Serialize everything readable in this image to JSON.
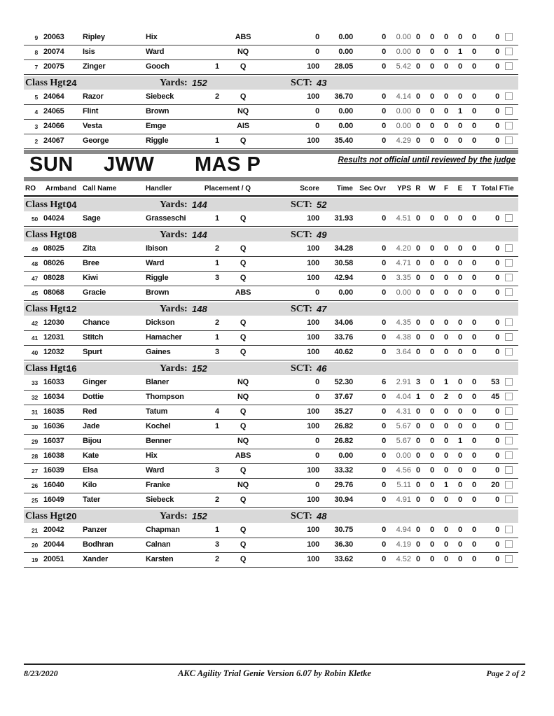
{
  "header": {
    "day": "SUN",
    "event": "JWW",
    "division": "MAS P",
    "notice": "Results not official until reviewed by the judge"
  },
  "columns": {
    "ro": "RO",
    "armband": "Armband",
    "call_name": "Call Name",
    "handler": "Handler",
    "placement_q": "Placement / Q",
    "score": "Score",
    "time": "Time",
    "sec_ovr": "Sec Ovr",
    "yps": "YPS",
    "r": "R",
    "w": "W",
    "f": "F",
    "e": "E",
    "t": "T",
    "total_f": "Total F",
    "tie": "Tie"
  },
  "class_labels": {
    "hgt": "Class Hgt:",
    "yards": "Yards:",
    "sct": "SCT:"
  },
  "pre_section": {
    "blocks": [
      {
        "type": "rows",
        "rows": [
          {
            "ro": "9",
            "armband": "20063",
            "call_name": "Ripley",
            "handler": "Hix",
            "placement": "",
            "q": "ABS",
            "score": "0",
            "time": "0.00",
            "sec_ovr": "0",
            "yps": "0.00",
            "r": "0",
            "w": "0",
            "f": "0",
            "e": "0",
            "t": "0",
            "total_f": "0"
          },
          {
            "ro": "8",
            "armband": "20074",
            "call_name": "Isis",
            "handler": "Ward",
            "placement": "",
            "q": "NQ",
            "score": "0",
            "time": "0.00",
            "sec_ovr": "0",
            "yps": "0.00",
            "r": "0",
            "w": "0",
            "f": "0",
            "e": "1",
            "t": "0",
            "total_f": "0"
          },
          {
            "ro": "7",
            "armband": "20075",
            "call_name": "Zinger",
            "handler": "Gooch",
            "placement": "1",
            "q": "Q",
            "score": "100",
            "time": "28.05",
            "sec_ovr": "0",
            "yps": "5.42",
            "r": "0",
            "w": "0",
            "f": "0",
            "e": "0",
            "t": "0",
            "total_f": "0"
          }
        ]
      },
      {
        "type": "class",
        "hgt": "24",
        "yards": "152",
        "sct": "43"
      },
      {
        "type": "rows",
        "rows": [
          {
            "ro": "5",
            "armband": "24064",
            "call_name": "Razor",
            "handler": "Siebeck",
            "placement": "2",
            "q": "Q",
            "score": "100",
            "time": "36.70",
            "sec_ovr": "0",
            "yps": "4.14",
            "r": "0",
            "w": "0",
            "f": "0",
            "e": "0",
            "t": "0",
            "total_f": "0"
          },
          {
            "ro": "4",
            "armband": "24065",
            "call_name": "Flint",
            "handler": "Brown",
            "placement": "",
            "q": "NQ",
            "score": "0",
            "time": "0.00",
            "sec_ovr": "0",
            "yps": "0.00",
            "r": "0",
            "w": "0",
            "f": "0",
            "e": "1",
            "t": "0",
            "total_f": "0"
          },
          {
            "ro": "3",
            "armband": "24066",
            "call_name": "Vesta",
            "handler": "Emge",
            "placement": "",
            "q": "AIS",
            "score": "0",
            "time": "0.00",
            "sec_ovr": "0",
            "yps": "0.00",
            "r": "0",
            "w": "0",
            "f": "0",
            "e": "0",
            "t": "0",
            "total_f": "0"
          },
          {
            "ro": "2",
            "armband": "24067",
            "call_name": "George",
            "handler": "Riggle",
            "placement": "1",
            "q": "Q",
            "score": "100",
            "time": "35.40",
            "sec_ovr": "0",
            "yps": "4.29",
            "r": "0",
            "w": "0",
            "f": "0",
            "e": "0",
            "t": "0",
            "total_f": "0"
          }
        ]
      }
    ]
  },
  "main_section": {
    "blocks": [
      {
        "type": "class",
        "hgt": "04",
        "yards": "144",
        "sct": "52"
      },
      {
        "type": "rows",
        "rows": [
          {
            "ro": "50",
            "armband": "04024",
            "call_name": "Sage",
            "handler": "Grasseschi",
            "placement": "1",
            "q": "Q",
            "score": "100",
            "time": "31.93",
            "sec_ovr": "0",
            "yps": "4.51",
            "r": "0",
            "w": "0",
            "f": "0",
            "e": "0",
            "t": "0",
            "total_f": "0"
          }
        ]
      },
      {
        "type": "class",
        "hgt": "08",
        "yards": "144",
        "sct": "49"
      },
      {
        "type": "rows",
        "rows": [
          {
            "ro": "49",
            "armband": "08025",
            "call_name": "Zita",
            "handler": "Ibison",
            "placement": "2",
            "q": "Q",
            "score": "100",
            "time": "34.28",
            "sec_ovr": "0",
            "yps": "4.20",
            "r": "0",
            "w": "0",
            "f": "0",
            "e": "0",
            "t": "0",
            "total_f": "0"
          },
          {
            "ro": "48",
            "armband": "08026",
            "call_name": "Bree",
            "handler": "Ward",
            "placement": "1",
            "q": "Q",
            "score": "100",
            "time": "30.58",
            "sec_ovr": "0",
            "yps": "4.71",
            "r": "0",
            "w": "0",
            "f": "0",
            "e": "0",
            "t": "0",
            "total_f": "0"
          },
          {
            "ro": "47",
            "armband": "08028",
            "call_name": "Kiwi",
            "handler": "Riggle",
            "placement": "3",
            "q": "Q",
            "score": "100",
            "time": "42.94",
            "sec_ovr": "0",
            "yps": "3.35",
            "r": "0",
            "w": "0",
            "f": "0",
            "e": "0",
            "t": "0",
            "total_f": "0"
          },
          {
            "ro": "45",
            "armband": "08068",
            "call_name": "Gracie",
            "handler": "Brown",
            "placement": "",
            "q": "ABS",
            "score": "0",
            "time": "0.00",
            "sec_ovr": "0",
            "yps": "0.00",
            "r": "0",
            "w": "0",
            "f": "0",
            "e": "0",
            "t": "0",
            "total_f": "0"
          }
        ]
      },
      {
        "type": "class",
        "hgt": "12",
        "yards": "148",
        "sct": "47"
      },
      {
        "type": "rows",
        "rows": [
          {
            "ro": "42",
            "armband": "12030",
            "call_name": "Chance",
            "handler": "Dickson",
            "placement": "2",
            "q": "Q",
            "score": "100",
            "time": "34.06",
            "sec_ovr": "0",
            "yps": "4.35",
            "r": "0",
            "w": "0",
            "f": "0",
            "e": "0",
            "t": "0",
            "total_f": "0"
          },
          {
            "ro": "41",
            "armband": "12031",
            "call_name": "Stitch",
            "handler": "Hamacher",
            "placement": "1",
            "q": "Q",
            "score": "100",
            "time": "33.76",
            "sec_ovr": "0",
            "yps": "4.38",
            "r": "0",
            "w": "0",
            "f": "0",
            "e": "0",
            "t": "0",
            "total_f": "0"
          },
          {
            "ro": "40",
            "armband": "12032",
            "call_name": "Spurt",
            "handler": "Gaines",
            "placement": "3",
            "q": "Q",
            "score": "100",
            "time": "40.62",
            "sec_ovr": "0",
            "yps": "3.64",
            "r": "0",
            "w": "0",
            "f": "0",
            "e": "0",
            "t": "0",
            "total_f": "0"
          }
        ]
      },
      {
        "type": "class",
        "hgt": "16",
        "yards": "152",
        "sct": "46"
      },
      {
        "type": "rows",
        "rows": [
          {
            "ro": "33",
            "armband": "16033",
            "call_name": "Ginger",
            "handler": "Blaner",
            "placement": "",
            "q": "NQ",
            "score": "0",
            "time": "52.30",
            "sec_ovr": "6",
            "yps": "2.91",
            "r": "3",
            "w": "0",
            "f": "1",
            "e": "0",
            "t": "0",
            "total_f": "53"
          },
          {
            "ro": "32",
            "armband": "16034",
            "call_name": "Dottie",
            "handler": "Thompson",
            "placement": "",
            "q": "NQ",
            "score": "0",
            "time": "37.67",
            "sec_ovr": "0",
            "yps": "4.04",
            "r": "1",
            "w": "0",
            "f": "2",
            "e": "0",
            "t": "0",
            "total_f": "45"
          },
          {
            "ro": "31",
            "armband": "16035",
            "call_name": "Red",
            "handler": "Tatum",
            "placement": "4",
            "q": "Q",
            "score": "100",
            "time": "35.27",
            "sec_ovr": "0",
            "yps": "4.31",
            "r": "0",
            "w": "0",
            "f": "0",
            "e": "0",
            "t": "0",
            "total_f": "0"
          },
          {
            "ro": "30",
            "armband": "16036",
            "call_name": "Jade",
            "handler": "Kochel",
            "placement": "1",
            "q": "Q",
            "score": "100",
            "time": "26.82",
            "sec_ovr": "0",
            "yps": "5.67",
            "r": "0",
            "w": "0",
            "f": "0",
            "e": "0",
            "t": "0",
            "total_f": "0"
          },
          {
            "ro": "29",
            "armband": "16037",
            "call_name": "Bijou",
            "handler": "Benner",
            "placement": "",
            "q": "NQ",
            "score": "0",
            "time": "26.82",
            "sec_ovr": "0",
            "yps": "5.67",
            "r": "0",
            "w": "0",
            "f": "0",
            "e": "1",
            "t": "0",
            "total_f": "0"
          },
          {
            "ro": "28",
            "armband": "16038",
            "call_name": "Kate",
            "handler": "Hix",
            "placement": "",
            "q": "ABS",
            "score": "0",
            "time": "0.00",
            "sec_ovr": "0",
            "yps": "0.00",
            "r": "0",
            "w": "0",
            "f": "0",
            "e": "0",
            "t": "0",
            "total_f": "0"
          },
          {
            "ro": "27",
            "armband": "16039",
            "call_name": "Elsa",
            "handler": "Ward",
            "placement": "3",
            "q": "Q",
            "score": "100",
            "time": "33.32",
            "sec_ovr": "0",
            "yps": "4.56",
            "r": "0",
            "w": "0",
            "f": "0",
            "e": "0",
            "t": "0",
            "total_f": "0"
          },
          {
            "ro": "26",
            "armband": "16040",
            "call_name": "Kilo",
            "handler": "Franke",
            "placement": "",
            "q": "NQ",
            "score": "0",
            "time": "29.76",
            "sec_ovr": "0",
            "yps": "5.11",
            "r": "0",
            "w": "0",
            "f": "1",
            "e": "0",
            "t": "0",
            "total_f": "20"
          },
          {
            "ro": "25",
            "armband": "16049",
            "call_name": "Tater",
            "handler": "Siebeck",
            "placement": "2",
            "q": "Q",
            "score": "100",
            "time": "30.94",
            "sec_ovr": "0",
            "yps": "4.91",
            "r": "0",
            "w": "0",
            "f": "0",
            "e": "0",
            "t": "0",
            "total_f": "0"
          }
        ]
      },
      {
        "type": "class",
        "hgt": "20",
        "yards": "152",
        "sct": "48"
      },
      {
        "type": "rows",
        "rows": [
          {
            "ro": "21",
            "armband": "20042",
            "call_name": "Panzer",
            "handler": "Chapman",
            "placement": "1",
            "q": "Q",
            "score": "100",
            "time": "30.75",
            "sec_ovr": "0",
            "yps": "4.94",
            "r": "0",
            "w": "0",
            "f": "0",
            "e": "0",
            "t": "0",
            "total_f": "0"
          },
          {
            "ro": "20",
            "armband": "20044",
            "call_name": "Bodhran",
            "handler": "Calnan",
            "placement": "3",
            "q": "Q",
            "score": "100",
            "time": "36.30",
            "sec_ovr": "0",
            "yps": "4.19",
            "r": "0",
            "w": "0",
            "f": "0",
            "e": "0",
            "t": "0",
            "total_f": "0"
          },
          {
            "ro": "19",
            "armband": "20051",
            "call_name": "Xander",
            "handler": "Karsten",
            "placement": "2",
            "q": "Q",
            "score": "100",
            "time": "33.62",
            "sec_ovr": "0",
            "yps": "4.52",
            "r": "0",
            "w": "0",
            "f": "0",
            "e": "0",
            "t": "0",
            "total_f": "0"
          }
        ]
      }
    ]
  },
  "footer": {
    "date": "8/23/2020",
    "app": "AKC Agility Trial Genie Version 6.07 by Robin Kletke",
    "page": "Page 2 of 2"
  },
  "colors": {
    "band": "#d9d9d9",
    "bar": "#8a8a8a"
  }
}
